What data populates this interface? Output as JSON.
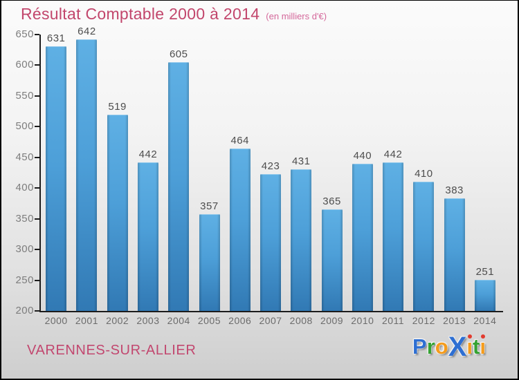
{
  "header": {
    "title": "Résultat Comptable 2000 à 2014",
    "subtitle": "(en milliers d'€)"
  },
  "chart_data": {
    "type": "bar",
    "title": "Résultat Comptable 2000 à 2014",
    "subtitle": "(en milliers d'€)",
    "unit": "milliers d'€",
    "categories": [
      "2000",
      "2001",
      "2002",
      "2003",
      "2004",
      "2005",
      "2006",
      "2007",
      "2008",
      "2009",
      "2010",
      "2011",
      "2012",
      "2013",
      "2014"
    ],
    "values": [
      631,
      642,
      519,
      442,
      605,
      357,
      464,
      423,
      431,
      365,
      440,
      442,
      410,
      383,
      251
    ],
    "xlabel": "",
    "ylabel": "",
    "ylim": [
      200,
      650
    ],
    "y_ticks": [
      200,
      250,
      300,
      350,
      400,
      450,
      500,
      550,
      600,
      650
    ],
    "grid": false,
    "legend": false,
    "bar_color_top": "#5fb0e4",
    "bar_color_mid": "#4d9fd8",
    "bar_color_bottom": "#3179b4"
  },
  "footer": {
    "municipality": "VARENNES-SUR-ALLIER"
  },
  "logo": {
    "text": "Proxiti",
    "letters": [
      {
        "t": "P",
        "color": "#2e6fd2"
      },
      {
        "t": "r",
        "color": "#35a233"
      },
      {
        "t": "o",
        "color": "#f59c1c"
      },
      {
        "t": "X",
        "color": "#2e6fd2",
        "big": true
      },
      {
        "t": "ı",
        "color": "#f59c1c",
        "dot": "#e23b2e"
      },
      {
        "t": "t",
        "color": "#35a233"
      },
      {
        "t": "ı",
        "color": "#f59c1c",
        "dot": "#e23b2e"
      }
    ]
  },
  "colors": {
    "title": "#c2466c",
    "subtitle": "#d4679a",
    "value_label": "#4d4d4d",
    "axis": "#1c1c1c",
    "tick_label": "#7d7d7d",
    "year_label": "#6b6b6b",
    "footer": "#c2476f"
  }
}
